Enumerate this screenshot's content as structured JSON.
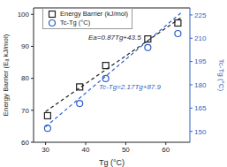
{
  "chart_data": {
    "type": "scatter",
    "x_label": "Tg (°C)",
    "y_label": "Energy Barrier (Eₐ kJ/mol)",
    "y2_label": "Tc-Tg (°C)",
    "xlim": [
      27,
      66
    ],
    "xticks": [
      30,
      40,
      50,
      60
    ],
    "ylim": [
      60,
      102
    ],
    "yticks": [
      60,
      70,
      80,
      90,
      100
    ],
    "y2lim": [
      143,
      229.5
    ],
    "y2ticks": [
      150,
      165,
      180,
      195,
      210,
      225
    ],
    "legend": "upper left",
    "series": [
      {
        "name": "Energy Barrier (kJ/mol)",
        "color": "#222222",
        "marker": "square",
        "x": [
          30.5,
          38.5,
          45,
          55.5,
          63
        ],
        "values": [
          68.3,
          77.3,
          84,
          92.3,
          97.3
        ]
      },
      {
        "name": "Tc-Tg (°C)",
        "color": "#2f5fc4",
        "marker": "circle",
        "axis": "y2",
        "x": [
          30.5,
          38.5,
          45,
          55.5,
          63
        ],
        "values": [
          152,
          168,
          184,
          204,
          213
        ]
      },
      {
        "name": "Ea=0.87Tg+43.5",
        "type": "line",
        "line_style": "dashed",
        "color": "#222222",
        "x": [
          30,
          64
        ],
        "values": [
          69.6,
          99.2
        ]
      },
      {
        "name": "Tc-Tg=2.17Tg+87.9",
        "type": "line",
        "line_style": "dashed",
        "color": "#2f5fc4",
        "axis": "y2",
        "x": [
          30,
          64
        ],
        "values": [
          153,
          226.8
        ]
      }
    ]
  }
}
